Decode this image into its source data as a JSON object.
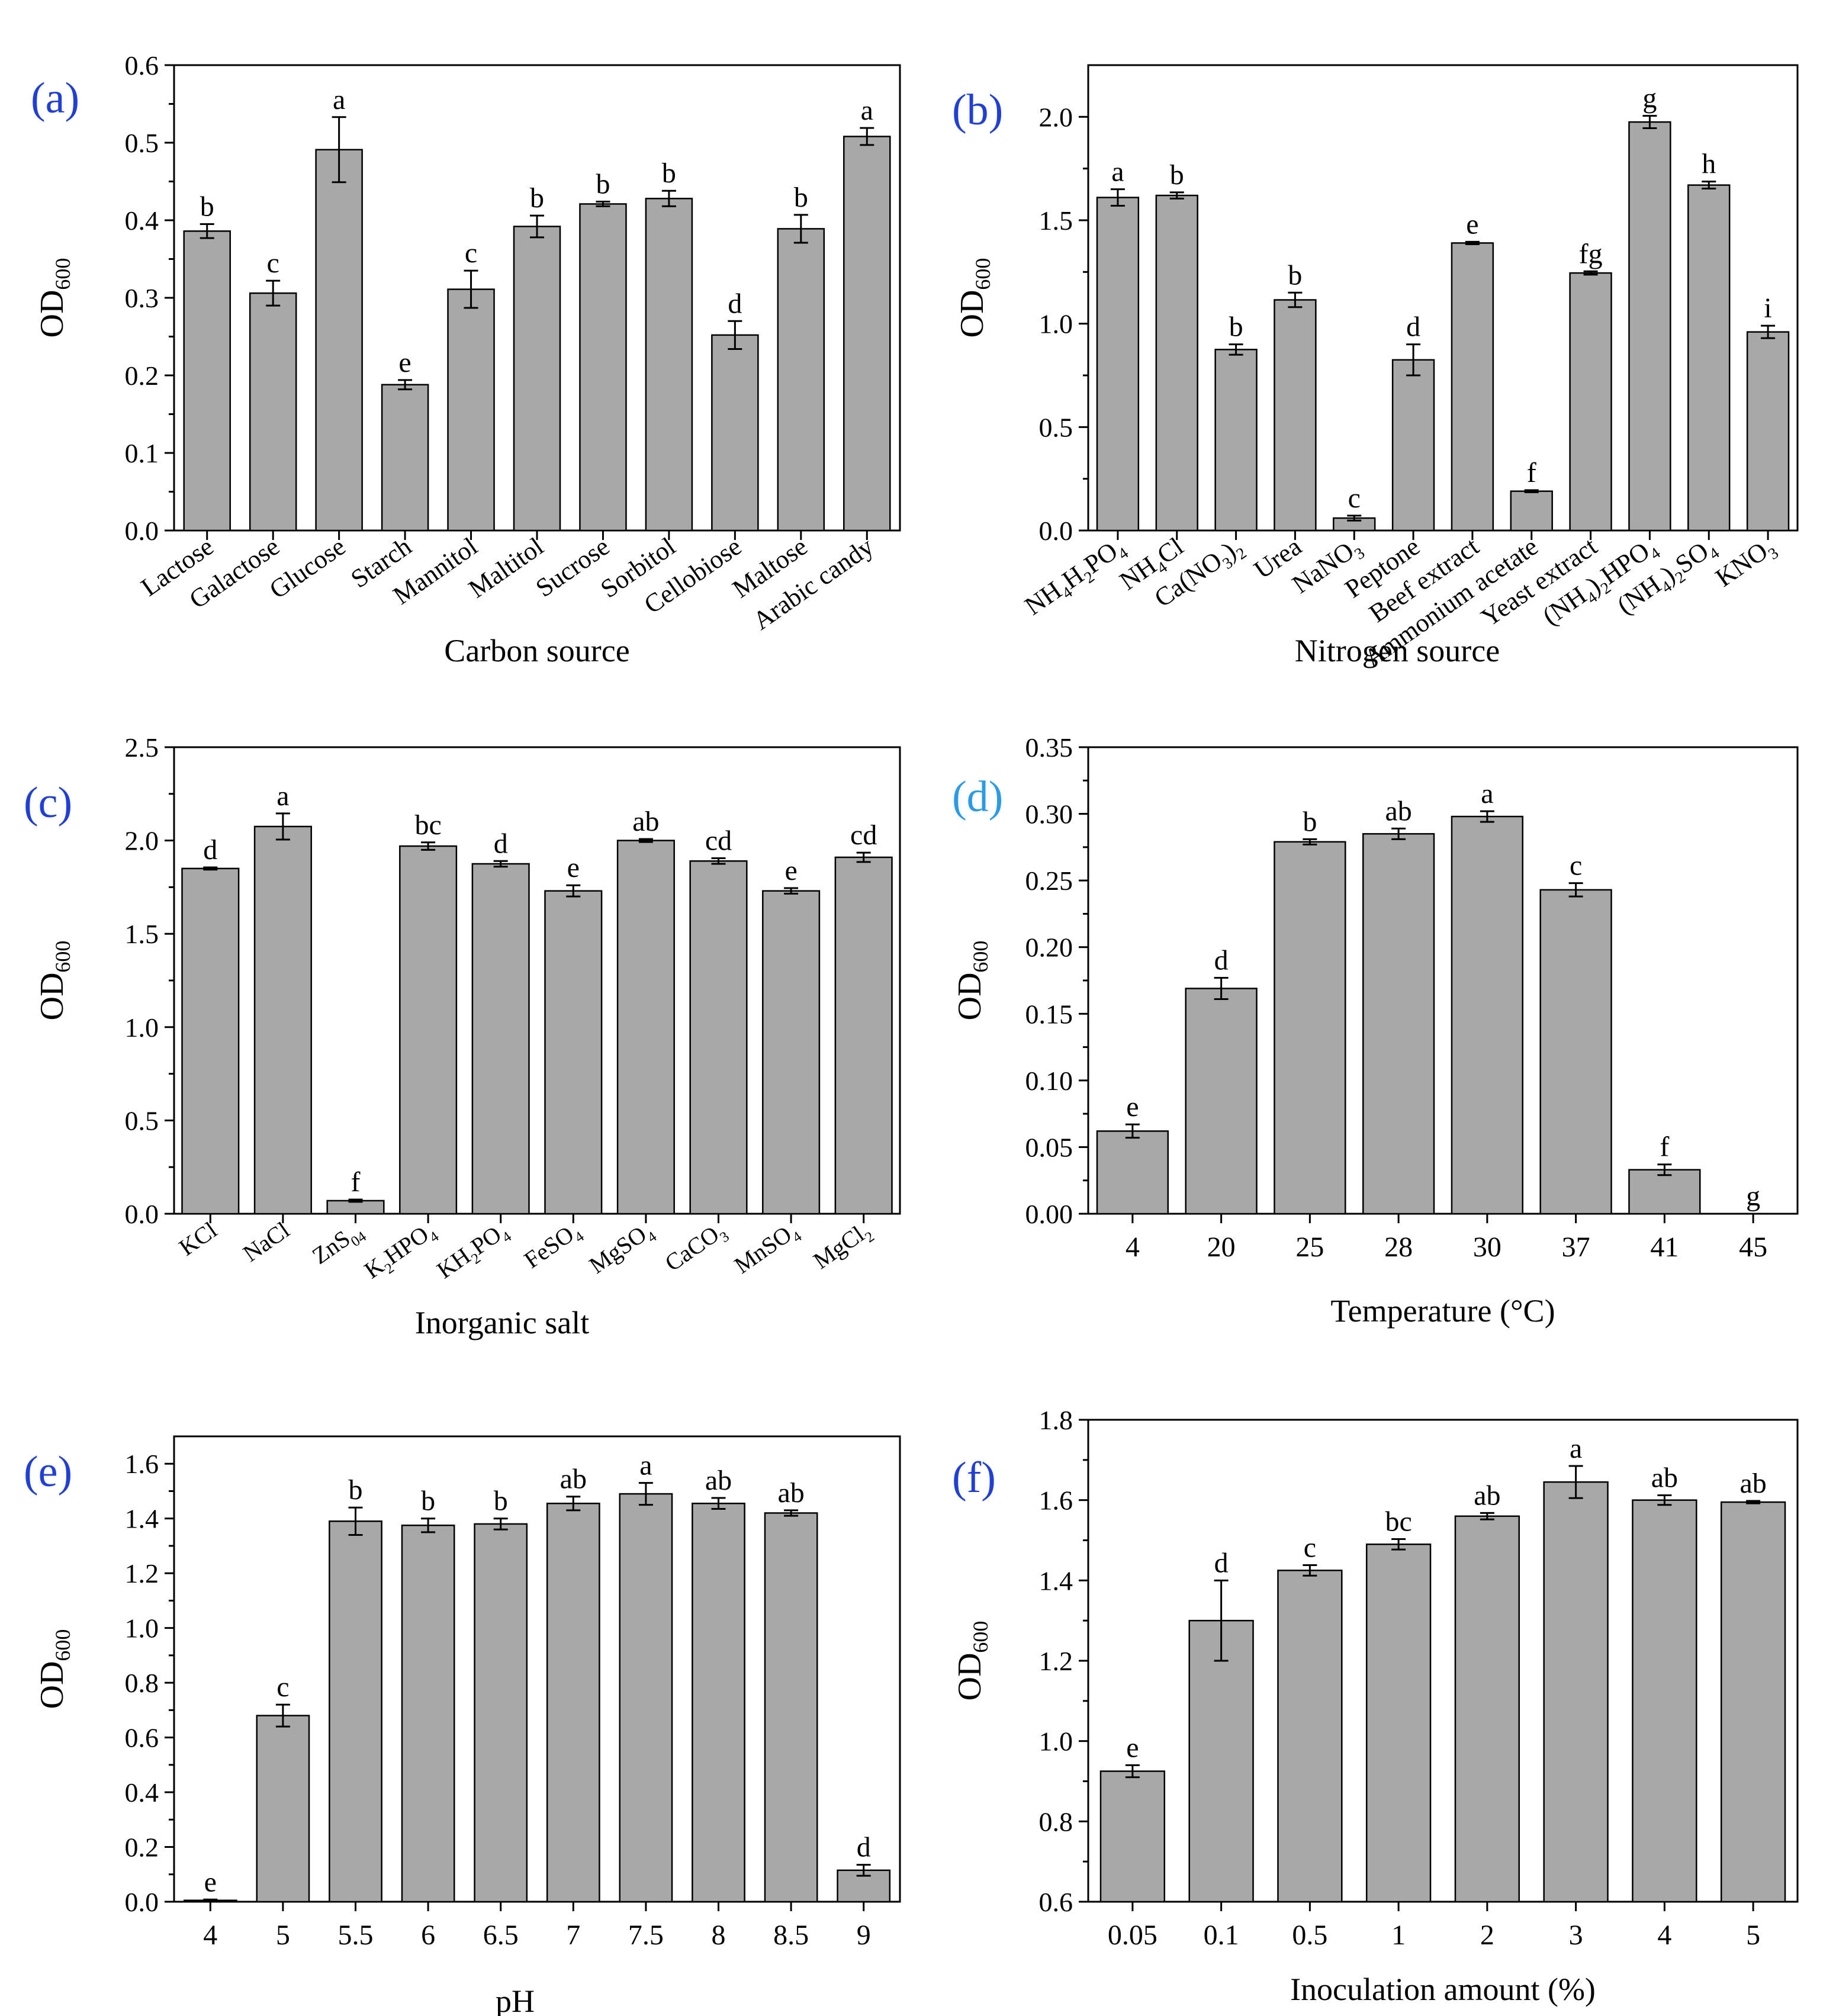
{
  "figure": {
    "label_color_default": "#1f3fd8",
    "label_color_d": "#2a9be8",
    "bar_fill": "#a8a8a8",
    "bar_stroke": "#000000"
  },
  "chart_data": [
    {
      "id": "a",
      "panel_label": "(a)",
      "type": "bar",
      "xlabel": "Carbon source",
      "ylabel": "OD",
      "ylabel_sub": "600",
      "ylim": [
        0,
        0.6
      ],
      "yticks": [
        "0.0",
        "0.1",
        "0.2",
        "0.3",
        "0.4",
        "0.5",
        "0.6"
      ],
      "categories": [
        "Lactose",
        "Galactose",
        "Glucose",
        "Starch",
        "Mannitol",
        "Maltitol",
        "Sucrose",
        "Sorbitol",
        "Cellobiose",
        "Maltose",
        "Arabic candy"
      ],
      "values": [
        0.386,
        0.306,
        0.491,
        0.188,
        0.311,
        0.392,
        0.421,
        0.428,
        0.252,
        0.389,
        0.508
      ],
      "errors": [
        0.009,
        0.016,
        0.042,
        0.006,
        0.024,
        0.014,
        0.003,
        0.01,
        0.018,
        0.018,
        0.011
      ],
      "letters": [
        "b",
        "c",
        "a",
        "e",
        "c",
        "b",
        "b",
        "b",
        "d",
        "b",
        "a"
      ]
    },
    {
      "id": "b",
      "panel_label": "(b)",
      "type": "bar",
      "xlabel": "Nitrogen source",
      "ylabel": "OD",
      "ylabel_sub": "600",
      "ylim": [
        0,
        2.25
      ],
      "yticks": [
        "0.0",
        "0.5",
        "1.0",
        "1.5",
        "2.0"
      ],
      "categories": [
        "NH4H2PO4",
        "NH4Cl",
        "Ca(NO3)2",
        "Urea",
        "NaNO3",
        "Peptone",
        "Beef extract",
        "Ammonium acetate",
        "Yeast extract",
        "(NH4)2HPO4",
        "(NH4)2SO4",
        "KNO3"
      ],
      "values": [
        1.61,
        1.62,
        0.875,
        1.115,
        0.06,
        0.825,
        1.39,
        0.19,
        1.245,
        1.975,
        1.67,
        0.96
      ],
      "errors": [
        0.04,
        0.015,
        0.025,
        0.035,
        0.012,
        0.075,
        0.006,
        0.005,
        0.008,
        0.03,
        0.017,
        0.03
      ],
      "letters": [
        "a",
        "b",
        "b",
        "b",
        "c",
        "d",
        "e",
        "f",
        "fg",
        "g",
        "h",
        "i"
      ]
    },
    {
      "id": "c",
      "panel_label": "(c)",
      "type": "bar",
      "xlabel": "Inorganic salt",
      "ylabel": "OD",
      "ylabel_sub": "600",
      "ylim": [
        0,
        2.5
      ],
      "yticks": [
        "0.0",
        "0.5",
        "1.0",
        "1.5",
        "2.0",
        "2.5"
      ],
      "categories": [
        "KCl",
        "NaCl",
        "ZnS04",
        "K2HPO4",
        "KH2PO4",
        "FeSO4",
        "MgSO4",
        "CaCO3",
        "MnSO4",
        "MgCl2"
      ],
      "values": [
        1.85,
        2.075,
        0.07,
        1.97,
        1.875,
        1.73,
        2.0,
        1.89,
        1.73,
        1.91
      ],
      "errors": [
        0.006,
        0.07,
        0.006,
        0.02,
        0.015,
        0.03,
        0.008,
        0.015,
        0.015,
        0.025
      ],
      "letters": [
        "d",
        "a",
        "f",
        "bc",
        "d",
        "e",
        "ab",
        "cd",
        "e",
        "cd"
      ]
    },
    {
      "id": "d",
      "panel_label": "(d)",
      "type": "bar",
      "xlabel": "Temperature (°C)",
      "ylabel": "OD",
      "ylabel_sub": "600",
      "ylim": [
        0,
        0.35
      ],
      "yticks": [
        "0.00",
        "0.05",
        "0.10",
        "0.15",
        "0.20",
        "0.25",
        "0.30",
        "0.35"
      ],
      "categories": [
        "4",
        "20",
        "25",
        "28",
        "30",
        "37",
        "41",
        "45"
      ],
      "values": [
        0.062,
        0.169,
        0.279,
        0.285,
        0.298,
        0.243,
        0.033,
        0.0
      ],
      "errors": [
        0.005,
        0.008,
        0.002,
        0.004,
        0.004,
        0.005,
        0.004,
        0.0
      ],
      "letters": [
        "e",
        "d",
        "b",
        "ab",
        "a",
        "c",
        "f",
        "g"
      ]
    },
    {
      "id": "e",
      "panel_label": "(e)",
      "type": "bar",
      "xlabel": "pH",
      "ylabel": "OD",
      "ylabel_sub": "600",
      "ylim": [
        0,
        1.7
      ],
      "yticks": [
        "0.0",
        "0.2",
        "0.4",
        "0.6",
        "0.8",
        "1.0",
        "1.2",
        "1.4",
        "1.6"
      ],
      "categories": [
        "4",
        "5",
        "5.5",
        "6",
        "6.5",
        "7",
        "7.5",
        "8",
        "8.5",
        "9"
      ],
      "values": [
        0.005,
        0.68,
        1.39,
        1.375,
        1.38,
        1.455,
        1.49,
        1.455,
        1.42,
        0.115
      ],
      "errors": [
        0.003,
        0.04,
        0.05,
        0.025,
        0.02,
        0.025,
        0.04,
        0.02,
        0.01,
        0.02
      ],
      "letters": [
        "e",
        "c",
        "b",
        "b",
        "b",
        "ab",
        "a",
        "ab",
        "ab",
        "d"
      ]
    },
    {
      "id": "f",
      "panel_label": "(f)",
      "type": "bar",
      "xlabel": "Inoculation amount (%)",
      "ylabel": "OD",
      "ylabel_sub": "600",
      "ylim": [
        0.6,
        1.8
      ],
      "yticks": [
        "0.6",
        "0.8",
        "1.0",
        "1.2",
        "1.4",
        "1.6",
        "1.8"
      ],
      "categories": [
        "0.05",
        "0.1",
        "0.5",
        "1",
        "2",
        "3",
        "4",
        "5"
      ],
      "values": [
        0.925,
        1.3,
        1.425,
        1.49,
        1.56,
        1.645,
        1.6,
        1.595
      ],
      "errors": [
        0.015,
        0.1,
        0.013,
        0.013,
        0.008,
        0.04,
        0.012,
        0.003
      ],
      "letters": [
        "e",
        "d",
        "c",
        "bc",
        "ab",
        "a",
        "ab",
        "ab"
      ]
    }
  ]
}
